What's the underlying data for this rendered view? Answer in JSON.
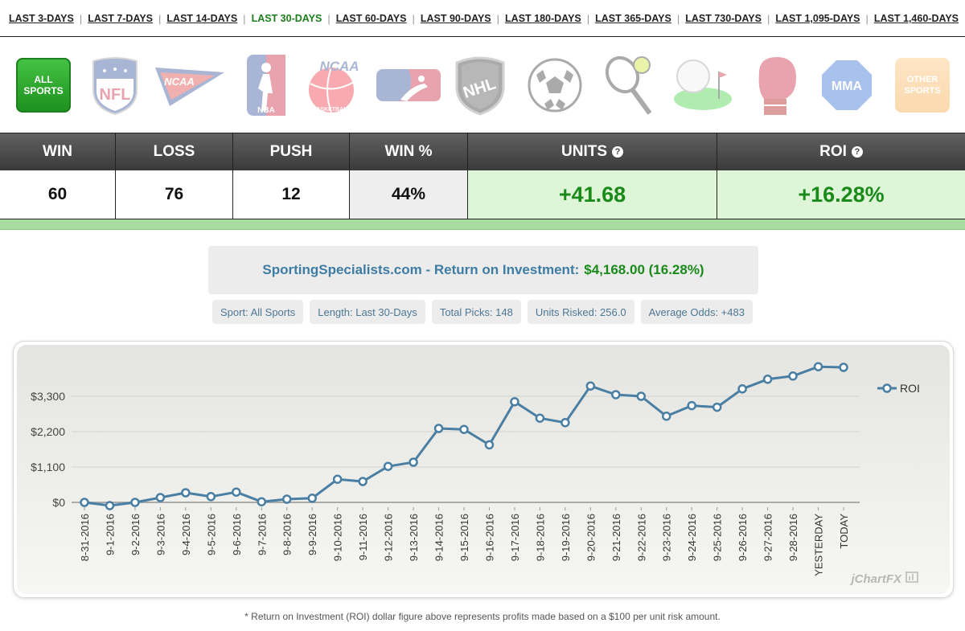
{
  "periods": [
    {
      "label": "LAST 3-DAYS",
      "active": false
    },
    {
      "label": "LAST 7-DAYS",
      "active": false
    },
    {
      "label": "LAST 14-DAYS",
      "active": false
    },
    {
      "label": "LAST 30-DAYS",
      "active": true
    },
    {
      "label": "LAST 60-DAYS",
      "active": false
    },
    {
      "label": "LAST 90-DAYS",
      "active": false
    },
    {
      "label": "LAST 180-DAYS",
      "active": false
    },
    {
      "label": "LAST 365-DAYS",
      "active": false
    },
    {
      "label": "LAST 730-DAYS",
      "active": false
    },
    {
      "label": "LAST 1,095-DAYS",
      "active": false
    },
    {
      "label": "LAST 1,460-DAYS",
      "active": false
    }
  ],
  "sports": {
    "all": {
      "line1": "ALL",
      "line2": "SPORTS"
    },
    "nfl": "NFL",
    "ncaa": "NCAA",
    "nba": "NBA",
    "ncaab_title": "NCAA",
    "ncaab_sub": "BASKETBALL",
    "nhl": "NHL",
    "mma": "MMA",
    "other": {
      "line1": "OTHER",
      "line2": "SPORTS"
    }
  },
  "stats": {
    "headers": {
      "win": "WIN",
      "loss": "LOSS",
      "push": "PUSH",
      "win_pct": "WIN %",
      "units": "UNITS",
      "roi": "ROI"
    },
    "help_glyph": "?",
    "win": "60",
    "loss": "76",
    "push": "12",
    "win_pct": "44%",
    "units": "+41.68",
    "roi": "+16.28%"
  },
  "roi_heading": {
    "site": "SportingSpecialists.com - Return on Investment:",
    "amount": "$4,168.00 (16.28%)"
  },
  "chips": {
    "sport": "Sport: All Sports",
    "length": "Length: Last 30-Days",
    "picks": "Total Picks: 148",
    "units": "Units Risked: 256.0",
    "odds": "Average Odds: +483"
  },
  "chart_data": {
    "type": "line",
    "title": "",
    "xlabel": "",
    "ylabel": "",
    "ylim": [
      -150,
      4500
    ],
    "yticks": [
      "$0",
      "$1,100",
      "$2,200",
      "$3,300"
    ],
    "ytick_values": [
      0,
      1100,
      2200,
      3300
    ],
    "grid": true,
    "legend_position": "top-right",
    "categories": [
      "8-31-2016",
      "9-1-2016",
      "9-2-2016",
      "9-3-2016",
      "9-4-2016",
      "9-5-2016",
      "9-6-2016",
      "9-7-2016",
      "9-8-2016",
      "9-9-2016",
      "9-10-2016",
      "9-11-2016",
      "9-12-2016",
      "9-13-2016",
      "9-14-2016",
      "9-15-2016",
      "9-16-2016",
      "9-17-2016",
      "9-18-2016",
      "9-19-2016",
      "9-20-2016",
      "9-21-2016",
      "9-22-2016",
      "9-23-2016",
      "9-24-2016",
      "9-25-2016",
      "9-26-2016",
      "9-27-2016",
      "9-28-2016",
      "YESTERDAY",
      "TODAY"
    ],
    "series": [
      {
        "name": "ROI",
        "color": "#4a7fa3",
        "values": [
          0,
          -100,
          0,
          150,
          300,
          180,
          320,
          20,
          100,
          130,
          720,
          650,
          1120,
          1250,
          2300,
          2270,
          1790,
          3130,
          2620,
          2480,
          3620,
          3350,
          3300,
          2680,
          3010,
          2960,
          3530,
          3830,
          3930,
          4220,
          4200
        ]
      }
    ],
    "watermark": "jChartFX"
  },
  "footnote": "* Return on Investment (ROI) dollar figure above represents profits made based on a $100 per unit risk amount."
}
